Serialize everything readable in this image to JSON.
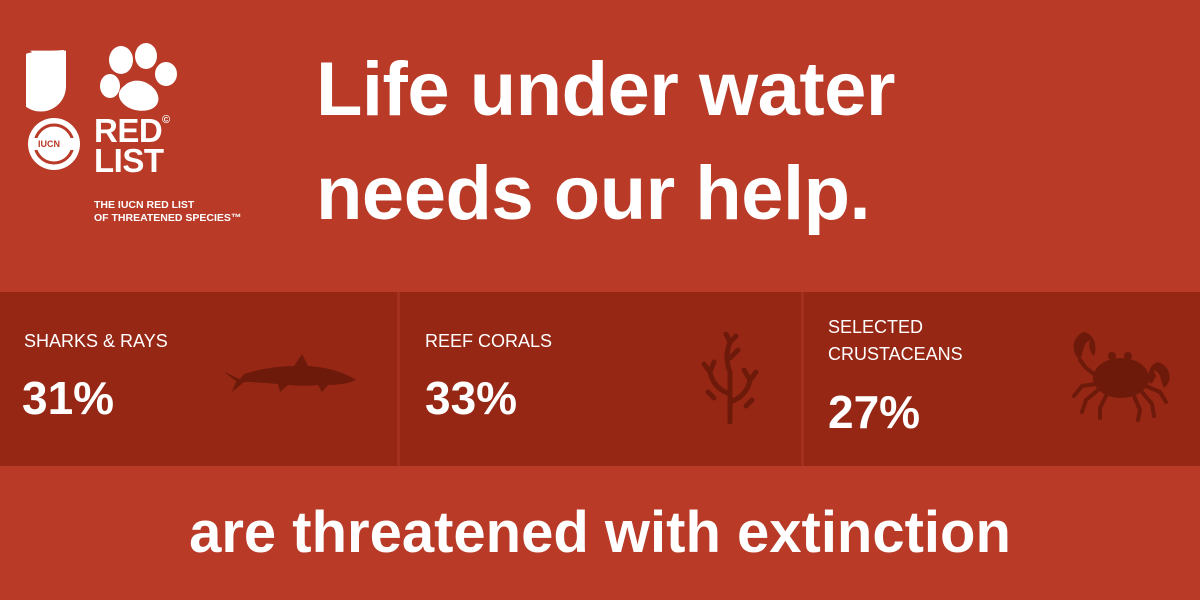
{
  "colors": {
    "background": "#b83a27",
    "band": "#962715",
    "divider": "#a3311d",
    "icon": "#6e1a0b",
    "text": "#ffffff"
  },
  "logo": {
    "badge_text": "IUCN",
    "title_line1": "RED",
    "title_line2": "LIST",
    "copyright": "©",
    "tagline_line1": "THE IUCN RED LIST",
    "tagline_line2": "OF THREATENED SPECIES™"
  },
  "headline": {
    "line1": "Life under water",
    "line2": "needs our help."
  },
  "stats": [
    {
      "label": "SHARKS & RAYS",
      "value": "31%",
      "icon": "shark-icon"
    },
    {
      "label": "REEF CORALS",
      "value": "33%",
      "icon": "coral-icon"
    },
    {
      "label": "SELECTED CRUSTACEANS",
      "value": "27%",
      "icon": "crab-icon"
    }
  ],
  "footer": {
    "text": "are threatened with extinction"
  }
}
